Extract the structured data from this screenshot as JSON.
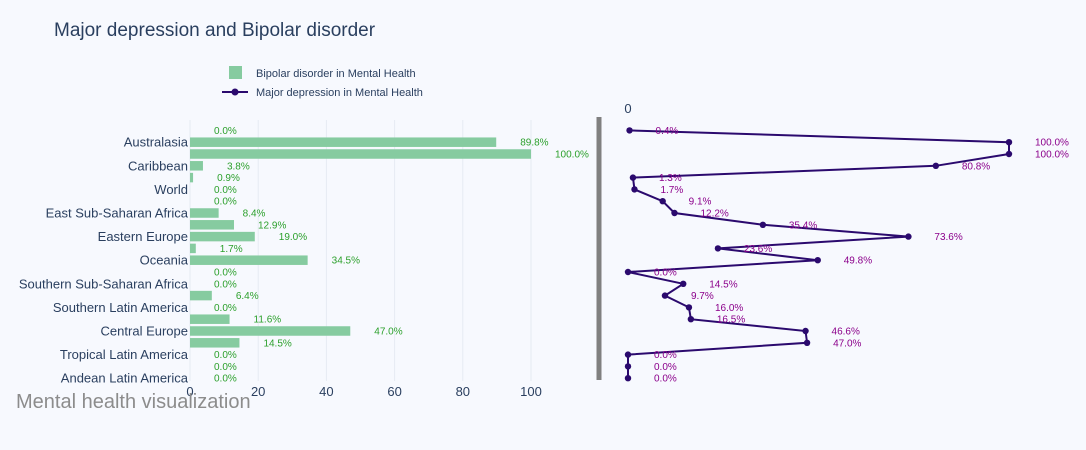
{
  "chart_data": {
    "type": "bar",
    "title": "Major depression and Bipolar disorder",
    "footer": "Mental health visualization",
    "legend": {
      "position": "top-left",
      "entries": [
        {
          "name": "Bipolar disorder in Mental Health",
          "marker": "square"
        },
        {
          "name": "Major depression in Mental Health",
          "marker": "line-dot"
        }
      ]
    },
    "bar_xaxis": {
      "ticks": [
        "0",
        "20",
        "40",
        "60",
        "80",
        "100"
      ],
      "range": [
        0,
        120
      ]
    },
    "line_xaxis": {
      "ticks": [
        "0"
      ]
    },
    "colors": {
      "bar": "#86cba0",
      "line": "#2b0a6e",
      "bar_label": "#2ca02c",
      "line_label": "#8b008b",
      "divider": "#808080"
    },
    "category_labels": [
      "Australasia",
      "Caribbean",
      "World",
      "East Sub-Saharan Africa",
      "Eastern Europe",
      "Oceania",
      "Southern Sub-Saharan Africa",
      "Southern Latin America",
      "Central Europe",
      "Tropical Latin America",
      "Andean Latin America"
    ],
    "bipolar_series": {
      "name": "Bipolar disorder in Mental Health",
      "values": [
        0.0,
        89.8,
        100.0,
        3.8,
        0.9,
        0.0,
        0.0,
        8.4,
        12.9,
        19.0,
        1.7,
        34.5,
        0.0,
        0.0,
        6.4,
        0.0,
        11.6,
        47.0,
        14.5,
        0.0,
        0.0,
        0.0
      ],
      "labels": [
        "0.0%",
        "89.8%",
        "100.0%",
        "3.8%",
        "0.9%",
        "0.0%",
        "0.0%",
        "8.4%",
        "12.9%",
        "19.0%",
        "1.7%",
        "34.5%",
        "0.0%",
        "0.0%",
        "6.4%",
        "0.0%",
        "11.6%",
        "47.0%",
        "14.5%",
        "0.0%",
        "0.0%",
        "0.0%"
      ]
    },
    "depression_series": {
      "name": "Major depression in Mental Health",
      "values": [
        0.4,
        100.0,
        100.0,
        80.8,
        1.3,
        1.7,
        9.1,
        12.2,
        35.4,
        73.6,
        23.6,
        49.8,
        0.0,
        14.5,
        9.7,
        16.0,
        16.5,
        46.6,
        47.0,
        0.0,
        0.0,
        0.0
      ],
      "labels": [
        "0.4%",
        "100.0%",
        "100.0%",
        "80.8%",
        "1.3%",
        "1.7%",
        "9.1%",
        "12.2%",
        "35.4%",
        "73.6%",
        "23.6%",
        "49.8%",
        "0.0%",
        "14.5%",
        "9.7%",
        "16.0%",
        "16.5%",
        "46.6%",
        "47.0%",
        "0.0%",
        "0.0%",
        "0.0%"
      ]
    }
  }
}
